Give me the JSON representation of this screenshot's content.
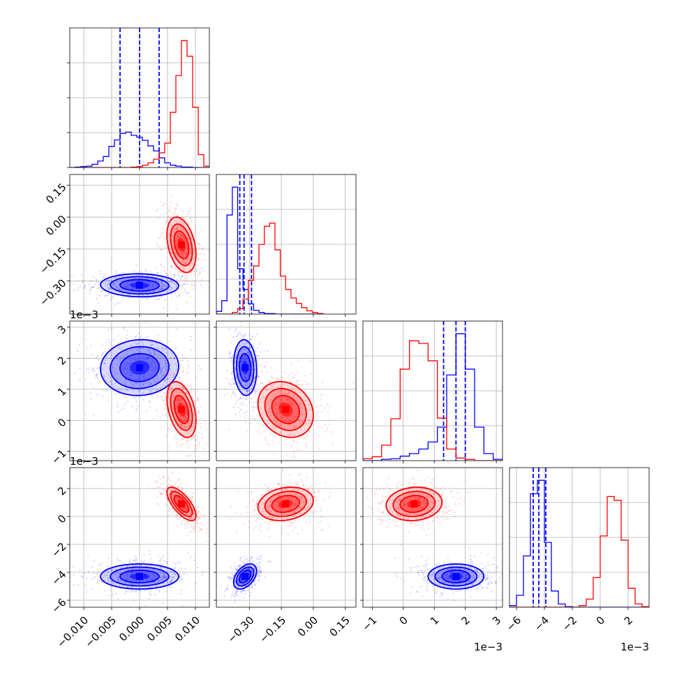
{
  "chart_data": {
    "type": "corner",
    "parameters": [
      "p0",
      "p1",
      "p2",
      "p3"
    ],
    "grid": true,
    "series": [
      {
        "name": "",
        "color": "#0000ff",
        "means": [
          0.0,
          -0.32,
          0.0017,
          -0.0043
        ],
        "sigmas": [
          0.0035,
          0.027,
          0.00045,
          0.00045
        ],
        "quantile_lines": [
          [
            -0.0035,
            0.0,
            0.0035
          ],
          [
            -0.345,
            -0.325,
            -0.29
          ],
          [
            0.0013,
            0.0017,
            0.002
          ],
          [
            -0.0048,
            -0.0044,
            -0.0039
          ]
        ]
      },
      {
        "name": "",
        "color": "#ff0000",
        "means": [
          0.0075,
          -0.13,
          0.00035,
          0.0009
        ],
        "sigmas": [
          0.0013,
          0.065,
          0.00045,
          0.0006
        ]
      }
    ],
    "pair_correlations": {
      "0-1": [
        -0.05,
        -0.35
      ],
      "0-2": [
        0.05,
        -0.4
      ],
      "0-3": [
        0.0,
        -0.7
      ],
      "1-2": [
        -0.1,
        -0.2
      ],
      "1-3": [
        0.45,
        0.2
      ],
      "2-3": [
        0.0,
        0.1
      ]
    },
    "marginals": [
      {
        "bins": [
          -0.0125,
          -0.0115,
          -0.0105,
          -0.0095,
          -0.0085,
          -0.0075,
          -0.0065,
          -0.0055,
          -0.0045,
          -0.0035,
          -0.0025,
          -0.0015,
          -0.0005,
          0.0005,
          0.0015,
          0.0025,
          0.0035,
          0.0045,
          0.0055,
          0.0065,
          0.0075,
          0.0085,
          0.0095,
          0.0105,
          0.0115,
          0.0125
        ],
        "blue": [
          0,
          1,
          2,
          3,
          7,
          14,
          24,
          46,
          60,
          74,
          77,
          70,
          66,
          59,
          47,
          36,
          21,
          10,
          5,
          3,
          1,
          1,
          0,
          0,
          0
        ],
        "red": [
          0,
          0,
          0,
          0,
          0,
          0,
          0,
          0,
          0,
          0,
          0,
          1,
          2,
          5,
          10,
          18,
          32,
          53,
          120,
          200,
          276,
          242,
          131,
          28,
          3
        ]
      },
      {
        "bins": [
          -0.455,
          -0.43,
          -0.405,
          -0.38,
          -0.355,
          -0.33,
          -0.305,
          -0.28,
          -0.255,
          -0.23,
          -0.205,
          -0.18,
          -0.155,
          -0.13,
          -0.105,
          -0.08,
          -0.055,
          -0.03,
          -0.005,
          0.02,
          0.045
        ],
        "blue": [
          5,
          25,
          185,
          237,
          85,
          46,
          19,
          7,
          3,
          1,
          1,
          0,
          0,
          0,
          0,
          0,
          0,
          0,
          0,
          0
        ],
        "red": [
          0,
          0,
          0,
          3,
          10,
          28,
          63,
          90,
          130,
          164,
          170,
          120,
          71,
          46,
          30,
          20,
          12,
          6,
          3,
          1
        ]
      },
      {
        "bins": [
          -0.0013,
          -0.001,
          -0.0007,
          -0.0004,
          -0.0001,
          0.0002,
          0.0005,
          0.0008,
          0.0011,
          0.0014,
          0.0017,
          0.002,
          0.0023,
          0.0026,
          0.0029,
          0.0032
        ],
        "blue": [
          0,
          0,
          2,
          3,
          7,
          11,
          18,
          29,
          52,
          133,
          197,
          142,
          52,
          11,
          2
        ],
        "red": [
          3,
          6,
          24,
          65,
          142,
          186,
          182,
          155,
          66,
          18,
          4,
          2,
          0,
          0,
          0
        ]
      },
      {
        "bins": [
          -0.0065,
          -0.006,
          -0.0055,
          -0.005,
          -0.0045,
          -0.004,
          -0.0035,
          -0.003,
          -0.0025,
          -0.002,
          -0.0015,
          -0.001,
          -0.0005,
          0.0,
          0.0005,
          0.001,
          0.0015,
          0.002,
          0.0025,
          0.003,
          0.0035
        ],
        "blue": [
          3,
          22,
          95,
          210,
          235,
          120,
          30,
          6,
          1,
          0,
          0,
          0,
          0,
          0,
          0,
          0,
          0,
          0,
          0,
          0
        ],
        "red": [
          0,
          0,
          0,
          0,
          0,
          0,
          0,
          0,
          0,
          0,
          3,
          15,
          55,
          132,
          205,
          198,
          124,
          35,
          6,
          1
        ]
      }
    ],
    "axes": [
      {
        "range": [
          -0.0125,
          0.0125
        ],
        "ticks": [
          -0.01,
          -0.005,
          0.0,
          0.005,
          0.01
        ],
        "tick_labels": [
          "−0.010",
          "−0.005",
          "0.000",
          "0.005",
          "0.010"
        ],
        "offset_label": ""
      },
      {
        "range": [
          -0.455,
          0.2
        ],
        "ticks": [
          -0.3,
          -0.15,
          0.0,
          0.15
        ],
        "tick_labels": [
          "−0.30",
          "−0.15",
          "0.00",
          "0.15"
        ],
        "offset_label": ""
      },
      {
        "range": [
          -0.0013,
          0.0032
        ],
        "ticks": [
          -0.001,
          0.0,
          0.001,
          0.002,
          0.003
        ],
        "tick_labels": [
          "−1",
          "0",
          "1",
          "2",
          "3"
        ],
        "offset_label": "1e−3"
      },
      {
        "range": [
          -0.0065,
          0.0035
        ],
        "ticks": [
          -0.006,
          -0.004,
          -0.002,
          0.0,
          0.002
        ],
        "tick_labels": [
          "−6",
          "−4",
          "−2",
          "0",
          "2"
        ],
        "offset_label": "1e−3"
      }
    ]
  }
}
